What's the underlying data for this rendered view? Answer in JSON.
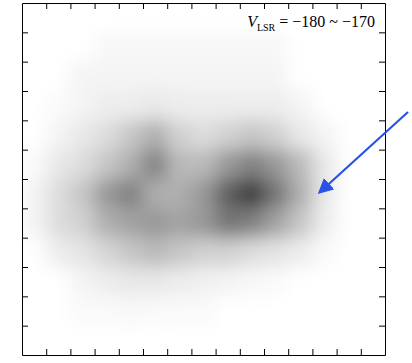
{
  "chart_data": {
    "type": "heatmap",
    "title": {
      "text": "V",
      "subscript": "LSR",
      "tail": " = −180 ~ −170"
    },
    "tick_labels": false,
    "color": "#1a1a1a",
    "xlim": [
      0,
      15
    ],
    "ylim": [
      0,
      12
    ],
    "xticks": [
      1,
      2,
      3,
      4,
      5,
      6,
      7,
      8,
      9,
      10,
      11,
      12,
      13,
      14
    ],
    "yticks": [
      1,
      2,
      3,
      4,
      5,
      6,
      7,
      8,
      9,
      10,
      11
    ],
    "zlim": [
      0,
      1
    ],
    "x": [
      0.5,
      1.5,
      2.5,
      3.5,
      4.5,
      5.5,
      6.5,
      7.5,
      8.5,
      9.5,
      10.5,
      11.5,
      12.5,
      13.5,
      14.5
    ],
    "y": [
      11.5,
      10.5,
      9.5,
      8.5,
      7.5,
      6.5,
      5.5,
      4.5,
      3.5,
      2.5,
      1.5,
      0.5
    ],
    "z": [
      [
        0,
        0,
        0,
        0,
        0,
        0,
        0,
        0,
        0,
        0,
        0,
        0,
        0,
        0,
        0
      ],
      [
        0,
        0,
        0,
        0.03,
        0.03,
        0.03,
        0.03,
        0.03,
        0.03,
        0.03,
        0.03,
        0,
        0,
        0,
        0
      ],
      [
        0,
        0,
        0.05,
        0.05,
        0.05,
        0.05,
        0.05,
        0.05,
        0.05,
        0.05,
        0.05,
        0,
        0,
        0,
        0
      ],
      [
        0,
        0.02,
        0.05,
        0.08,
        0.08,
        0.1,
        0.08,
        0.08,
        0.08,
        0.08,
        0.08,
        0.05,
        0,
        0,
        0
      ],
      [
        0,
        0.05,
        0.1,
        0.15,
        0.25,
        0.35,
        0.2,
        0.15,
        0.2,
        0.25,
        0.2,
        0.1,
        0.05,
        0,
        0
      ],
      [
        0.02,
        0.1,
        0.15,
        0.25,
        0.35,
        0.55,
        0.3,
        0.3,
        0.45,
        0.55,
        0.45,
        0.3,
        0.1,
        0,
        0
      ],
      [
        0.05,
        0.15,
        0.25,
        0.45,
        0.55,
        0.35,
        0.35,
        0.45,
        0.7,
        0.85,
        0.6,
        0.35,
        0.1,
        0,
        0
      ],
      [
        0.05,
        0.15,
        0.2,
        0.35,
        0.4,
        0.45,
        0.4,
        0.45,
        0.6,
        0.55,
        0.4,
        0.25,
        0.08,
        0,
        0
      ],
      [
        0,
        0.08,
        0.12,
        0.18,
        0.25,
        0.3,
        0.25,
        0.2,
        0.2,
        0.15,
        0.12,
        0.08,
        0.02,
        0,
        0
      ],
      [
        0,
        0,
        0.05,
        0.08,
        0.1,
        0.1,
        0.08,
        0.06,
        0.05,
        0.03,
        0.02,
        0,
        0,
        0,
        0
      ],
      [
        0,
        0,
        0.02,
        0.02,
        0.03,
        0.02,
        0.02,
        0.02,
        0,
        0,
        0,
        0,
        0,
        0,
        0
      ],
      [
        0,
        0,
        0,
        0,
        0,
        0,
        0,
        0,
        0,
        0,
        0,
        0,
        0,
        0,
        0
      ]
    ]
  }
}
